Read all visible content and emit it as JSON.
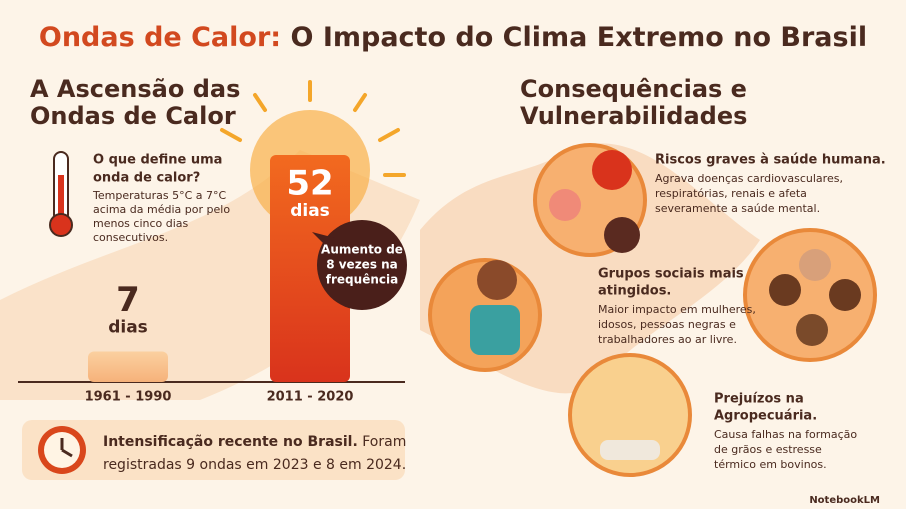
{
  "title": {
    "highlight": "Ondas de Calor:",
    "rest": "O Impacto do Clima Extremo no Brasil"
  },
  "left": {
    "heading": [
      "A Ascensão das",
      "Ondas de Calor"
    ],
    "definition": {
      "question": [
        "O que define uma",
        "onda de calor?"
      ],
      "text": [
        "Temperaturas 5°C a 7°C",
        "acima da média por pelo",
        "menos cinco dias",
        "consecutivos."
      ]
    },
    "bars": [
      {
        "period": "1961 - 1990",
        "value": 7,
        "unit": "dias"
      },
      {
        "period": "2011 - 2020",
        "value": 52,
        "unit": "dias"
      }
    ],
    "callout": [
      "Aumento de",
      "8 vezes na",
      "frequência"
    ],
    "note": {
      "bold": "Intensificação recente no Brasil.",
      "text": [
        "Foram",
        "registradas 9 ondas em 2023 e 8 em 2024."
      ]
    }
  },
  "right": {
    "heading": [
      "Consequências e",
      "Vulnerabilidades"
    ],
    "items": [
      {
        "title": [
          "Riscos graves à saúde humana."
        ],
        "text": [
          "Agrava doenças cardiovasculares,",
          "respiratórias, renais e afeta",
          "severamente a saúde mental."
        ]
      },
      {
        "title": [
          "Grupos sociais mais",
          "atingidos."
        ],
        "text": [
          "Maior impacto em mulheres,",
          "idosos, pessoas negras e",
          "trabalhadores ao ar livre."
        ]
      },
      {
        "title": [
          "Prejuízos na",
          "Agropecuária."
        ],
        "text": [
          "Causa falhas na formação",
          "de grãos e estresse",
          "térmico em bovinos."
        ]
      }
    ]
  },
  "footer": "NotebookLM"
}
